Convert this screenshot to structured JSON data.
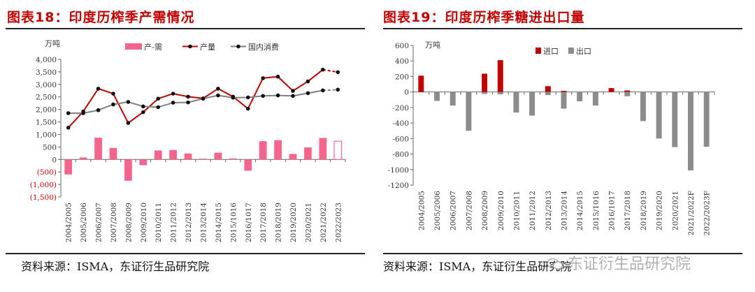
{
  "left": {
    "title": "图表18：印度历榨季产需情况",
    "source": "资料来源：ISMA，东证衍生品研究院"
  },
  "right": {
    "title": "图表19：印度历榨季糖进出口量",
    "source": "资料来源：ISMA，东证衍生品研究院"
  },
  "watermark": "东证衍生品研究院",
  "chart_data": [
    {
      "type": "bar+line",
      "unit": "万吨",
      "categories": [
        "2004/2005",
        "2005/2006",
        "2006/2007",
        "2007/2008",
        "2008/2009",
        "2009/2010",
        "2010/2011",
        "2011/2012",
        "2012/2013",
        "2013/2014",
        "2014/2015",
        "2015/1016",
        "2016/1017",
        "2017/2018",
        "2018/2019",
        "2019/2020",
        "2020/2021",
        "2021/2022",
        "2022/2023"
      ],
      "ylim": [
        -1500,
        4000
      ],
      "yticks": [
        -1500,
        -1000,
        -500,
        0,
        500,
        1000,
        1500,
        2000,
        2500,
        3000,
        3500,
        4000
      ],
      "ytick_labels": [
        "(1,500)",
        "(1,000)",
        "(500)",
        "0",
        "500",
        "1,000",
        "1,500",
        "2,000",
        "2,500",
        "3,000",
        "3,500",
        "4,000"
      ],
      "legend": "top",
      "grid": false,
      "series": [
        {
          "name": "产-需",
          "kind": "bar",
          "color": "#f4648c",
          "values": [
            -600,
            80,
            870,
            460,
            -850,
            -230,
            360,
            380,
            240,
            30,
            270,
            40,
            -450,
            730,
            770,
            220,
            480,
            860,
            730
          ],
          "last_hollow": true
        },
        {
          "name": "产量",
          "kind": "line",
          "color": "#c00000",
          "values": [
            1270,
            1920,
            2830,
            2630,
            1460,
            1890,
            2430,
            2630,
            2510,
            2440,
            2830,
            2510,
            2030,
            3250,
            3310,
            2740,
            3120,
            3590,
            3490
          ],
          "last_dashed": true
        },
        {
          "name": "国内消费",
          "kind": "line",
          "color": "#808080",
          "values": [
            1850,
            1850,
            1970,
            2200,
            2300,
            2120,
            2090,
            2270,
            2280,
            2430,
            2560,
            2470,
            2480,
            2540,
            2560,
            2540,
            2650,
            2760,
            2790
          ],
          "last_dashed": true
        }
      ]
    },
    {
      "type": "bar",
      "unit": "万吨",
      "categories": [
        "2004/2005",
        "2005/2006",
        "2006/2007",
        "2007/2008",
        "2008/2009",
        "2009/2010",
        "2010/2011",
        "2011/2012",
        "2012/2013",
        "2013/2014",
        "2014/2015",
        "2015/1016",
        "2016/1017",
        "2017/2018",
        "2018/2019",
        "2019/2020",
        "2020/2021",
        "2021/2022F",
        "2022/2023F"
      ],
      "ylim": [
        -1200,
        600
      ],
      "yticks": [
        -1200,
        -1000,
        -800,
        -600,
        -400,
        -200,
        0,
        200,
        400,
        600
      ],
      "ytick_labels": [
        "-1200",
        "-1000",
        "-800",
        "-600",
        "-400",
        "-200",
        "0",
        "200",
        "400",
        "600"
      ],
      "legend": "top",
      "grid": false,
      "series": [
        {
          "name": "进口",
          "kind": "bar",
          "color": "#c00000",
          "values": [
            210,
            0,
            0,
            0,
            235,
            410,
            0,
            0,
            75,
            15,
            0,
            0,
            50,
            20,
            0,
            0,
            0,
            0,
            0
          ]
        },
        {
          "name": "出口",
          "kind": "bar",
          "color": "#8c8c8c",
          "values": [
            0,
            -115,
            -175,
            -500,
            -25,
            -30,
            -265,
            -305,
            -40,
            -215,
            -120,
            -175,
            0,
            -55,
            -375,
            -600,
            -710,
            -1010,
            -705
          ]
        }
      ]
    }
  ]
}
